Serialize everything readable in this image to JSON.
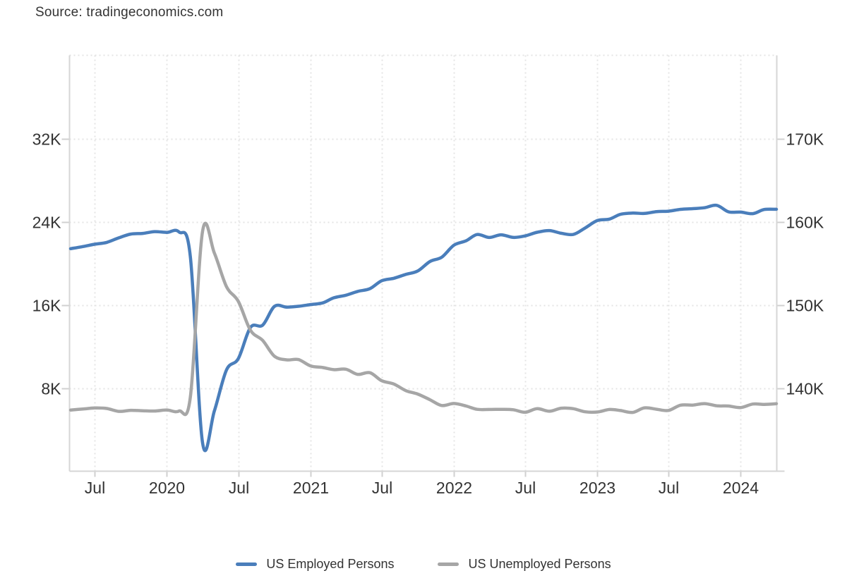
{
  "source": "Source: tradingeconomics.com",
  "colors": {
    "employed_line": "#4a7ebb",
    "unemployed_line": "#a6a6a6",
    "grid": "#e4e4e4",
    "border": "#d6d6d6",
    "tick": "#d0d0d0",
    "axis_text": "#333333",
    "background": "#ffffff"
  },
  "legend": {
    "items": [
      {
        "label": "US Employed Persons"
      },
      {
        "label": "US Unemployed Persons"
      }
    ]
  },
  "chart_data": {
    "type": "line",
    "title": "",
    "source_label": "Source: tradingeconomics.com",
    "grid": "dotted",
    "legend_position": "bottom",
    "x_axis": {
      "ticks": [
        {
          "label": "Jul",
          "date": "2019-07"
        },
        {
          "label": "2020",
          "date": "2020-01"
        },
        {
          "label": "Jul",
          "date": "2020-07"
        },
        {
          "label": "2021",
          "date": "2021-01"
        },
        {
          "label": "Jul",
          "date": "2021-07"
        },
        {
          "label": "2022",
          "date": "2022-01"
        },
        {
          "label": "Jul",
          "date": "2022-07"
        },
        {
          "label": "2023",
          "date": "2023-01"
        },
        {
          "label": "Jul",
          "date": "2023-07"
        },
        {
          "label": "2024",
          "date": "2024-01"
        }
      ]
    },
    "left_axis": {
      "series": "US Unemployed Persons",
      "tick_labels": [
        "8K",
        "16K",
        "24K",
        "32K"
      ],
      "tick_values": [
        8000,
        16000,
        24000,
        32000
      ],
      "min": 0,
      "max": 40000
    },
    "right_axis": {
      "series": "US Employed Persons",
      "tick_labels": [
        "140K",
        "150K",
        "160K",
        "170K"
      ],
      "tick_values": [
        140000,
        150000,
        160000,
        170000
      ],
      "min": 130000,
      "max": 180000
    },
    "months": [
      "2019-05",
      "2019-06",
      "2019-07",
      "2019-08",
      "2019-09",
      "2019-10",
      "2019-11",
      "2019-12",
      "2020-01",
      "2020-02",
      "2020-03",
      "2020-04",
      "2020-05",
      "2020-06",
      "2020-07",
      "2020-08",
      "2020-09",
      "2020-10",
      "2020-11",
      "2020-12",
      "2021-01",
      "2021-02",
      "2021-03",
      "2021-04",
      "2021-05",
      "2021-06",
      "2021-07",
      "2021-08",
      "2021-09",
      "2021-10",
      "2021-11",
      "2021-12",
      "2022-01",
      "2022-02",
      "2022-03",
      "2022-04",
      "2022-05",
      "2022-06",
      "2022-07",
      "2022-08",
      "2022-09",
      "2022-10",
      "2022-11",
      "2022-12",
      "2023-01",
      "2023-02",
      "2023-03",
      "2023-04",
      "2023-05",
      "2023-06",
      "2023-07",
      "2023-08",
      "2023-09",
      "2023-10",
      "2023-11",
      "2023-12",
      "2024-01",
      "2024-02",
      "2024-03",
      "2024-04"
    ],
    "series": [
      {
        "name": "US Employed Persons",
        "axis": "right",
        "color": "#4a7ebb",
        "values": [
          156758,
          157005,
          157288,
          157511,
          158062,
          158510,
          158593,
          158803,
          158714,
          158759,
          155772,
          133403,
          137242,
          142182,
          143532,
          147288,
          147563,
          149814,
          149732,
          149830,
          150031,
          150238,
          150848,
          151160,
          151620,
          151943,
          152902,
          153199,
          153669,
          154073,
          155215,
          155732,
          157174,
          157706,
          158458,
          158105,
          158426,
          158111,
          158290,
          158732,
          158936,
          158608,
          158470,
          159244,
          160138,
          160315,
          160892,
          161031,
          160994,
          161209,
          161262,
          161484,
          161570,
          161676,
          161969,
          161183,
          161152,
          160968,
          161466,
          161491
        ]
      },
      {
        "name": "US Unemployed Persons",
        "axis": "left",
        "color": "#a6a6a6",
        "values": [
          5888,
          5984,
          6079,
          6035,
          5753,
          5857,
          5815,
          5787,
          5892,
          5787,
          7140,
          23078,
          20985,
          17750,
          16338,
          13550,
          12580,
          11061,
          10710,
          10736,
          10130,
          9972,
          9767,
          9812,
          9316,
          9480,
          8702,
          8384,
          7743,
          7419,
          6877,
          6319,
          6513,
          6270,
          5954,
          5941,
          5950,
          5912,
          5670,
          6014,
          5769,
          6059,
          6011,
          5717,
          5694,
          5936,
          5839,
          5657,
          6097,
          5956,
          5841,
          6355,
          6360,
          6505,
          6291,
          6268,
          6124,
          6458,
          6429,
          6492
        ]
      }
    ]
  }
}
